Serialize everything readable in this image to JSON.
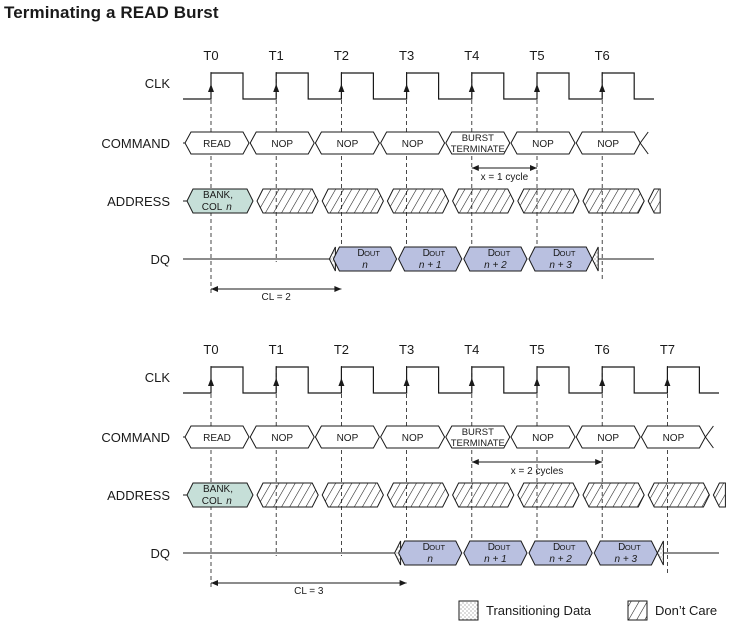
{
  "title": "Terminating a READ Burst",
  "signal_labels": {
    "clk": "CLK",
    "command": "COMMAND",
    "address": "ADDRESS",
    "dq": "DQ"
  },
  "colors": {
    "address_fill": "#c6dfd8",
    "dq_fill": "#b9c0e0",
    "line": "#1a1a1a",
    "dont_care_hatch": "#1a1a1a"
  },
  "diagrams": [
    {
      "id": "cl2",
      "clock_labels": [
        "T0",
        "T1",
        "T2",
        "T3",
        "T4",
        "T5",
        "T6"
      ],
      "commands": [
        "READ",
        "NOP",
        "NOP",
        "NOP",
        "BURST\nTERMINATE",
        "NOP",
        "NOP"
      ],
      "address_valid": {
        "line1": "BANK,",
        "line2": "COL n"
      },
      "dq": [
        {
          "name": "DOUT",
          "sub": "n"
        },
        {
          "name": "DOUT",
          "sub": "n + 1"
        },
        {
          "name": "DOUT",
          "sub": "n + 2"
        },
        {
          "name": "DOUT",
          "sub": "n + 3"
        }
      ],
      "latency_label": "CL = 2",
      "terminate_label": "x = 1 cycle"
    },
    {
      "id": "cl3",
      "clock_labels": [
        "T0",
        "T1",
        "T2",
        "T3",
        "T4",
        "T5",
        "T6",
        "T7"
      ],
      "commands": [
        "READ",
        "NOP",
        "NOP",
        "NOP",
        "BURST\nTERMINATE",
        "NOP",
        "NOP",
        "NOP"
      ],
      "address_valid": {
        "line1": "BANK,",
        "line2": "COL n"
      },
      "dq": [
        {
          "name": "DOUT",
          "sub": "n"
        },
        {
          "name": "DOUT",
          "sub": "n + 1"
        },
        {
          "name": "DOUT",
          "sub": "n + 2"
        },
        {
          "name": "DOUT",
          "sub": "n + 3"
        }
      ],
      "latency_label": "CL = 3",
      "terminate_label": "x = 2 cycles"
    }
  ],
  "legend": [
    {
      "key": "transitioning",
      "label": "Transitioning Data"
    },
    {
      "key": "dontcare",
      "label": "Don’t Care"
    }
  ]
}
